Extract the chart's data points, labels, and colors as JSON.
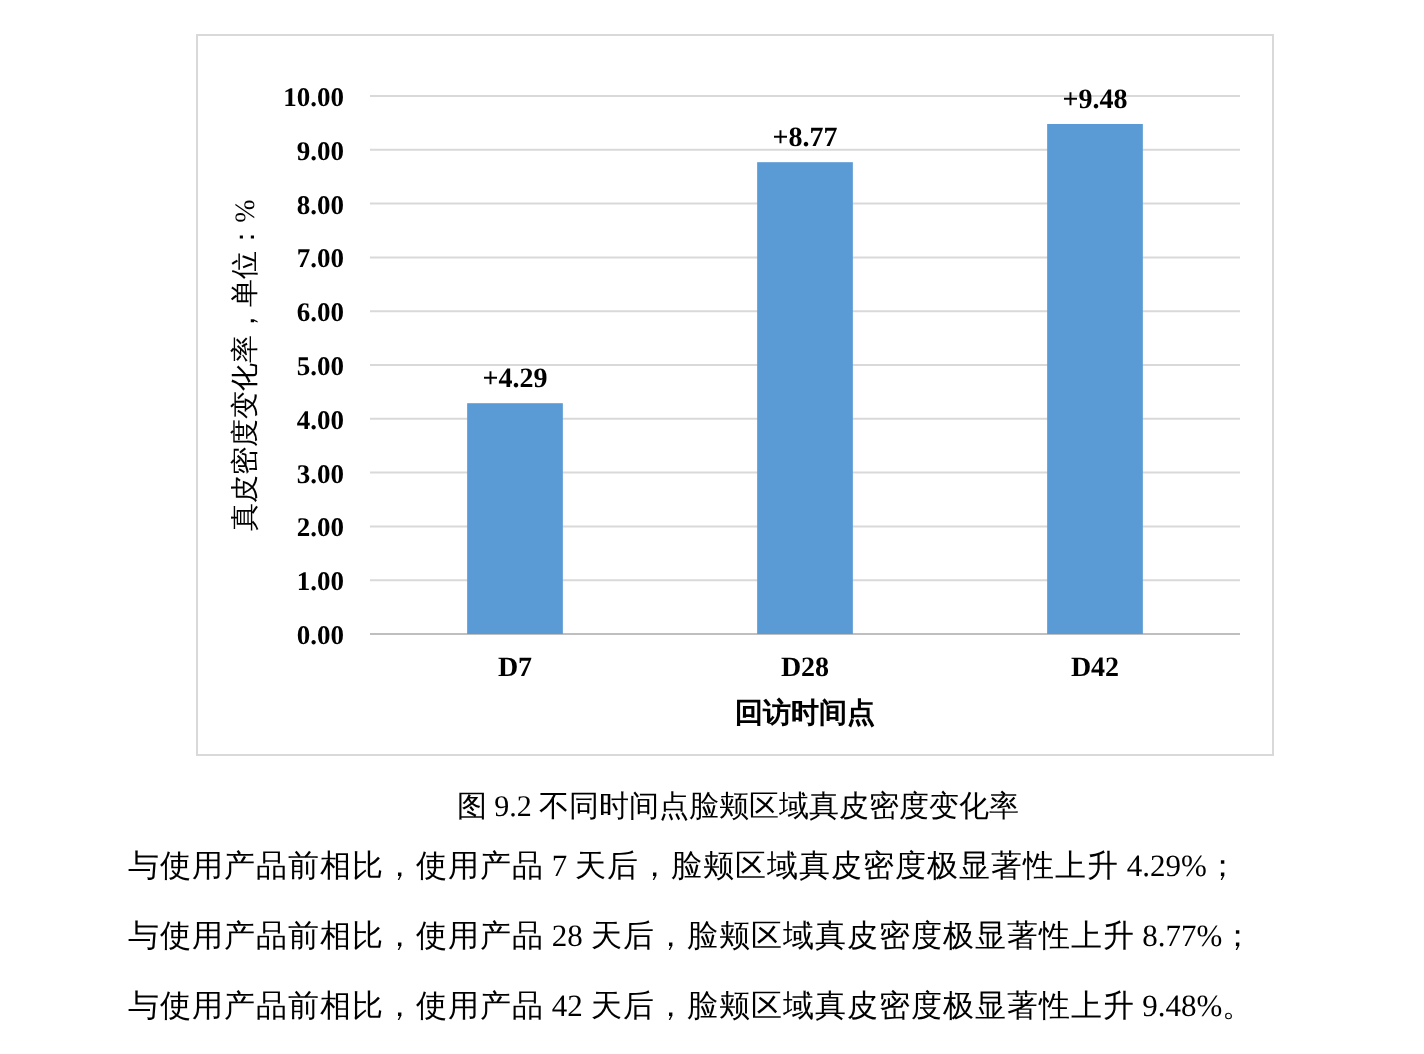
{
  "chart_data": {
    "type": "bar",
    "categories": [
      "D7",
      "D28",
      "D42"
    ],
    "values": [
      4.29,
      8.77,
      9.48
    ],
    "color": "#5b9bd5",
    "value_labels": [
      "+4.29",
      "+8.77",
      "+9.48"
    ],
    "xlabel": "回访时间点",
    "ylabel": "真皮密度变化率，单位：%",
    "ylim": [
      0,
      10
    ],
    "yticks": [
      {
        "value": 0,
        "label": "0.00"
      },
      {
        "value": 1,
        "label": "1.00"
      },
      {
        "value": 2,
        "label": "2.00"
      },
      {
        "value": 3,
        "label": "3.00"
      },
      {
        "value": 4,
        "label": "4.00"
      },
      {
        "value": 5,
        "label": "5.00"
      },
      {
        "value": 6,
        "label": "6.00"
      },
      {
        "value": 7,
        "label": "7.00"
      },
      {
        "value": 8,
        "label": "8.00"
      },
      {
        "value": 9,
        "label": "9.00"
      },
      {
        "value": 10,
        "label": "10.00"
      }
    ],
    "grid": "y",
    "annotations": [
      "图 9.2  不同时间点脸颊区域真皮密度变化率",
      "与使用产品前相比，使用产品 7 天后，脸颊区域真皮密度极显著性上升 4.29%；",
      "与使用产品前相比，使用产品 28 天后，脸颊区域真皮密度极显著性上升 8.77%；",
      "与使用产品前相比，使用产品 42 天后，脸颊区域真皮密度极显著性上升 9.48%。"
    ]
  }
}
